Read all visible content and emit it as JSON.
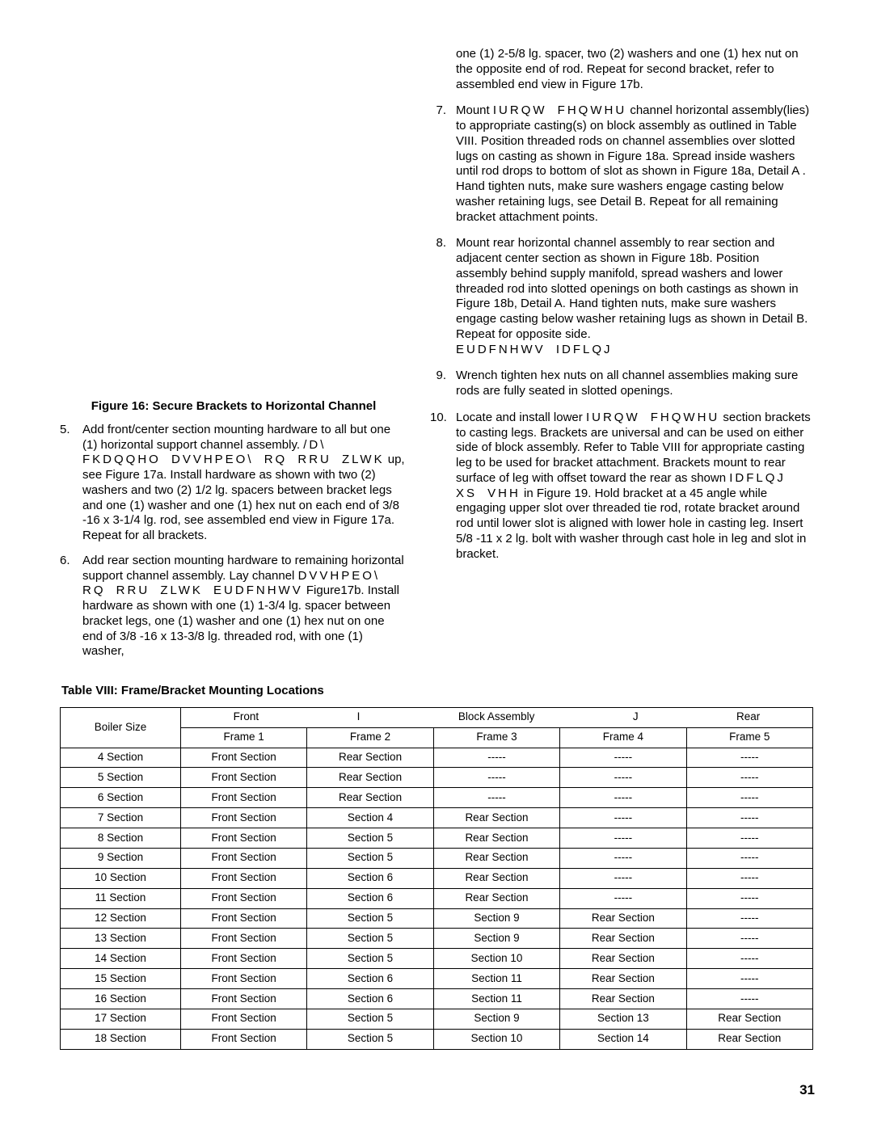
{
  "figure_caption": "Figure 16:  Secure Brackets to Horizontal Channel",
  "left_list": [
    {
      "num": "5.",
      "html": "Add front/center section mounting hardware to all but one (1) horizontal support channel assembly.  <span class=\"broken-line\">/D\\ FKDQQHO DVVHPEO\\ RQ  RRU ZLWK</span> up, see Figure 17a.  Install hardware as shown with two (2) washers and two (2) 1/2  lg. spacers between bracket legs and one (1) washer and one (1) hex nut on each end of 3/8  -16 x 3-1/4  lg. rod, see assembled end view in Figure 17a.  Repeat for all brackets."
    },
    {
      "num": "6.",
      "html": "Add rear section mounting hardware to remaining horizontal support channel assembly.  Lay channel <span class=\"broken-line\">DVVHPEO\\ RQ  RRU ZLWK EUDFNHWV</span> Figure17b.  Install hardware as shown with one (1) 1-3/4  lg. spacer between bracket legs, one (1) washer and one (1) hex nut on one end of 3/8  -16 x 13-3/8  lg. threaded rod, with one (1) washer,"
    }
  ],
  "right_list": [
    {
      "num": "",
      "html": "one (1) 2-5/8  lg. spacer, two (2) washers and one (1) hex nut on the opposite end of rod.  Repeat for second bracket, refer to assembled end view in Figure 17b."
    },
    {
      "num": "7.",
      "html": "Mount <span class=\"broken-line\">IURQW  FHQWHU</span> channel horizontal assembly(lies) to appropriate casting(s) on block assembly as outlined in Table VIII.  Position threaded rods on channel assemblies over slotted lugs on casting as shown in Figure 18a.  Spread inside washers until rod drops to bottom of slot as shown in Figure 18a, Detail  A .  Hand tighten nuts, make sure washers engage casting below washer retaining lugs, see Detail B.  Repeat for all remaining bracket attachment points."
    },
    {
      "num": "8.",
      "html": "Mount rear horizontal channel assembly to rear section and adjacent center section as shown in Figure 18b.  Position assembly behind supply manifold, spread washers and lower threaded rod into slotted openings on both castings as shown in Figure 18b, Detail A.  Hand tighten nuts, make sure washers engage casting below washer retaining lugs as shown in Detail B.  Repeat for opposite side.<br><span class=\"broken-line\">EUDFNHWV IDFLQJ</span>"
    },
    {
      "num": "9.",
      "html": "Wrench tighten hex nuts on all channel assemblies making sure rods are fully seated in slotted openings."
    },
    {
      "num": "10.",
      "html": "Locate and install lower <span class=\"broken-line\">IURQW FHQWHU</span> section brackets to casting legs.  Brackets are universal and can be used on either side of block assembly.  Refer to Table VIII for appropriate casting leg to be used for bracket attachment.  Brackets mount to rear surface of leg with offset toward the rear as shown <span class=\"broken-line\">IDFLQJ XS  VHH</span> in Figure 19.  Hold bracket at a 45  angle while engaging upper slot over threaded tie rod, rotate bracket around rod until lower slot is aligned with lower hole in casting leg.  Insert 5/8 -11 x 2  lg. bolt with washer through cast hole in leg and slot in bracket."
    }
  ],
  "table_title": "Table VIII:  Frame/Bracket Mounting Locations",
  "table": {
    "col1_header": "Boiler Size",
    "spanning_header_parts": [
      "Front",
      "I",
      "Block Assembly",
      "J",
      "Rear"
    ],
    "frame_headers": [
      "Frame 1",
      "Frame 2",
      "Frame 3",
      "Frame 4",
      "Frame 5"
    ],
    "rows": [
      [
        "4 Section",
        "Front Section",
        "Rear Section",
        "-----",
        "-----",
        "-----"
      ],
      [
        "5 Section",
        "Front Section",
        "Rear Section",
        "-----",
        "-----",
        "-----"
      ],
      [
        "6 Section",
        "Front Section",
        "Rear Section",
        "-----",
        "-----",
        "-----"
      ],
      [
        "7 Section",
        "Front Section",
        "Section 4",
        "Rear Section",
        "-----",
        "-----"
      ],
      [
        "8 Section",
        "Front Section",
        "Section 5",
        "Rear Section",
        "-----",
        "-----"
      ],
      [
        "9 Section",
        "Front Section",
        "Section 5",
        "Rear Section",
        "-----",
        "-----"
      ],
      [
        "10 Section",
        "Front Section",
        "Section 6",
        "Rear Section",
        "-----",
        "-----"
      ],
      [
        "11 Section",
        "Front Section",
        "Section 6",
        "Rear Section",
        "-----",
        "-----"
      ],
      [
        "12 Section",
        "Front Section",
        "Section 5",
        "Section 9",
        "Rear Section",
        "-----"
      ],
      [
        "13 Section",
        "Front Section",
        "Section 5",
        "Section 9",
        "Rear Section",
        "-----"
      ],
      [
        "14 Section",
        "Front Section",
        "Section 5",
        "Section 10",
        "Rear Section",
        "-----"
      ],
      [
        "15 Section",
        "Front Section",
        "Section 6",
        "Section 11",
        "Rear Section",
        "-----"
      ],
      [
        "16 Section",
        "Front Section",
        "Section 6",
        "Section 11",
        "Rear Section",
        "-----"
      ],
      [
        "17 Section",
        "Front Section",
        "Section 5",
        "Section 9",
        "Section 13",
        "Rear Section"
      ],
      [
        "18 Section",
        "Front Section",
        "Section 5",
        "Section 10",
        "Section 14",
        "Rear Section"
      ]
    ],
    "col_widths": [
      "16%",
      "16.8%",
      "16.8%",
      "16.8%",
      "16.8%",
      "16.8%"
    ]
  },
  "page_number": "31"
}
